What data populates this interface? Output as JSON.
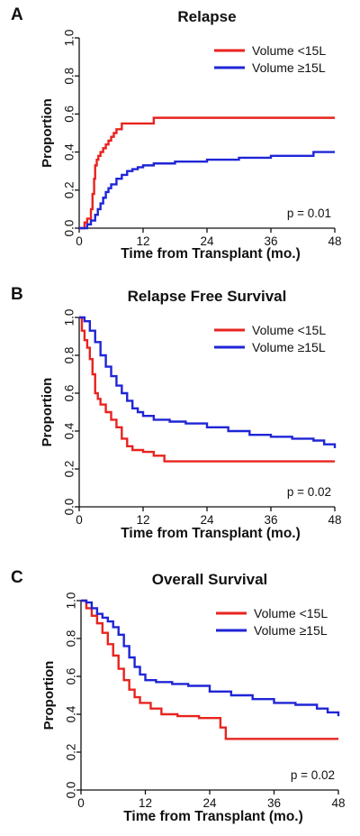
{
  "chart_data": [
    {
      "type": "line",
      "panel": "A",
      "title": "Relapse",
      "xlabel": "Time from Transplant  (mo.)",
      "ylabel": "Proportion",
      "xlim": [
        0,
        48
      ],
      "ylim": [
        0,
        1
      ],
      "xticks": [
        "0",
        "12",
        "24",
        "36",
        "48"
      ],
      "yticks": [
        "0.0",
        "0.2",
        "0.4",
        "0.6",
        "0.8",
        "1.0"
      ],
      "annotation": "p = 0.01",
      "legend_position": "top-right",
      "colors": {
        "Volume <15L": "#e8231f",
        "Volume ≥15L": "#1f25d6"
      },
      "series": [
        {
          "name": "Volume <15L",
          "color": "#e8231f",
          "x": [
            0,
            1,
            1.5,
            2.2,
            2.5,
            2.8,
            3.0,
            3.3,
            3.6,
            4.0,
            4.5,
            5.0,
            5.5,
            6.0,
            6.5,
            7.0,
            8.0,
            14.0,
            48.0
          ],
          "y": [
            0,
            0.03,
            0.05,
            0.1,
            0.18,
            0.26,
            0.33,
            0.36,
            0.38,
            0.4,
            0.42,
            0.44,
            0.46,
            0.48,
            0.5,
            0.52,
            0.55,
            0.58,
            0.58
          ]
        },
        {
          "name": "Volume ≥15L",
          "color": "#1f25d6",
          "x": [
            0,
            1.5,
            2.2,
            3.0,
            3.5,
            4.0,
            4.5,
            5.0,
            5.5,
            6.0,
            7.0,
            8.0,
            9.0,
            10.0,
            11.0,
            12.0,
            14.0,
            18.0,
            24.0,
            30.0,
            36.0,
            44.0,
            48.0
          ],
          "y": [
            0,
            0.02,
            0.04,
            0.07,
            0.1,
            0.13,
            0.16,
            0.19,
            0.21,
            0.23,
            0.26,
            0.28,
            0.3,
            0.31,
            0.32,
            0.33,
            0.34,
            0.35,
            0.36,
            0.37,
            0.38,
            0.4,
            0.4
          ]
        }
      ]
    },
    {
      "type": "line",
      "panel": "B",
      "title": "Relapse Free Survival",
      "xlabel": "Time from Transplant  (mo.)",
      "ylabel": "Proportion",
      "xlim": [
        0,
        48
      ],
      "ylim": [
        0,
        1
      ],
      "xticks": [
        "0",
        "12",
        "24",
        "36",
        "48"
      ],
      "yticks": [
        "0.0",
        "0.2",
        "0.4",
        "0.6",
        "0.8",
        "1.0"
      ],
      "annotation": "p = 0.02",
      "legend_position": "top-right",
      "colors": {
        "Volume <15L": "#e8231f",
        "Volume ≥15L": "#1f25d6"
      },
      "series": [
        {
          "name": "Volume <15L",
          "color": "#e8231f",
          "x": [
            0,
            0.5,
            1.0,
            1.5,
            2.0,
            2.5,
            3.0,
            3.5,
            4.0,
            5.0,
            6.0,
            7.0,
            8.0,
            9.0,
            10.0,
            12.0,
            14.0,
            16.0,
            48.0
          ],
          "y": [
            1.0,
            0.93,
            0.88,
            0.84,
            0.78,
            0.7,
            0.6,
            0.57,
            0.54,
            0.5,
            0.46,
            0.42,
            0.36,
            0.32,
            0.3,
            0.29,
            0.27,
            0.24,
            0.24
          ]
        },
        {
          "name": "Volume ≥15L",
          "color": "#1f25d6",
          "x": [
            0,
            1.0,
            2.0,
            3.0,
            4.0,
            5.0,
            6.0,
            7.0,
            8.0,
            9.0,
            10.0,
            11.0,
            12.0,
            14.0,
            17.0,
            20.0,
            24.0,
            28.0,
            32.0,
            36.0,
            40.0,
            44.0,
            46.0,
            48.0
          ],
          "y": [
            1.0,
            0.98,
            0.93,
            0.87,
            0.8,
            0.74,
            0.69,
            0.64,
            0.6,
            0.56,
            0.52,
            0.5,
            0.48,
            0.46,
            0.45,
            0.44,
            0.42,
            0.4,
            0.38,
            0.37,
            0.36,
            0.35,
            0.33,
            0.31
          ]
        }
      ]
    },
    {
      "type": "line",
      "panel": "C",
      "title": "Overall Survival",
      "xlabel": "Time from Transplant  (mo.)",
      "ylabel": "Proportion",
      "xlim": [
        0,
        48
      ],
      "ylim": [
        0,
        1
      ],
      "xticks": [
        "0",
        "12",
        "24",
        "36",
        "48"
      ],
      "yticks": [
        "0.0",
        "0.2",
        "0.4",
        "0.6",
        "0.8",
        "1.0"
      ],
      "annotation": "p = 0.02",
      "legend_position": "top-right",
      "colors": {
        "Volume <15L": "#e8231f",
        "Volume ≥15L": "#1f25d6"
      },
      "series": [
        {
          "name": "Volume <15L",
          "color": "#e8231f",
          "x": [
            0,
            1.0,
            2.0,
            3.0,
            4.0,
            5.0,
            6.0,
            7.0,
            8.0,
            9.0,
            10.0,
            11.0,
            13.0,
            15.0,
            18.0,
            22.0,
            26.0,
            27.0,
            48.0
          ],
          "y": [
            1.0,
            0.96,
            0.92,
            0.88,
            0.83,
            0.77,
            0.71,
            0.64,
            0.58,
            0.53,
            0.49,
            0.46,
            0.43,
            0.4,
            0.39,
            0.38,
            0.33,
            0.27,
            0.27
          ]
        },
        {
          "name": "Volume ≥15L",
          "color": "#1f25d6",
          "x": [
            0,
            1.0,
            2.0,
            3.0,
            4.0,
            5.0,
            6.0,
            7.0,
            8.0,
            9.0,
            10.0,
            11.0,
            12.0,
            14.0,
            17.0,
            20.0,
            24.0,
            28.0,
            32.0,
            36.0,
            40.0,
            44.0,
            46.0,
            48.0
          ],
          "y": [
            1.0,
            0.99,
            0.96,
            0.93,
            0.91,
            0.89,
            0.86,
            0.82,
            0.76,
            0.7,
            0.65,
            0.61,
            0.58,
            0.57,
            0.56,
            0.55,
            0.52,
            0.5,
            0.48,
            0.46,
            0.45,
            0.43,
            0.41,
            0.39
          ]
        }
      ]
    }
  ]
}
